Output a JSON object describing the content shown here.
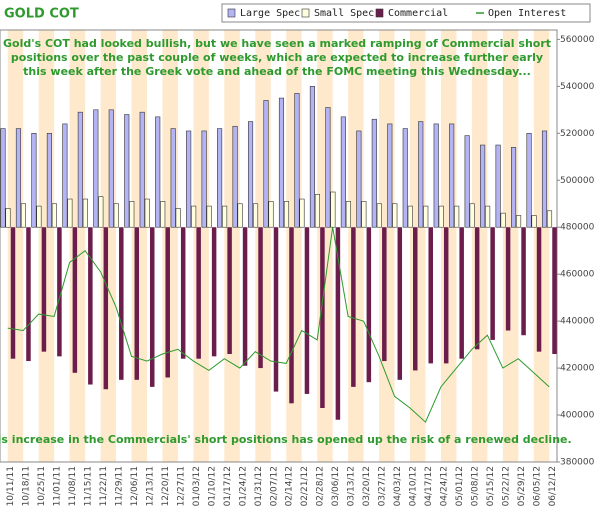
{
  "chart_data": {
    "type": "bar",
    "title": "GOLD COT",
    "categories": [
      "10/11/11",
      "10/18/11",
      "10/25/11",
      "11/01/11",
      "11/08/11",
      "11/15/11",
      "11/22/11",
      "11/29/11",
      "12/06/11",
      "12/13/11",
      "12/20/11",
      "12/27/11",
      "01/03/12",
      "01/10/12",
      "01/17/12",
      "01/24/12",
      "01/31/12",
      "02/07/12",
      "02/14/12",
      "02/21/12",
      "02/28/12",
      "03/06/12",
      "03/13/12",
      "03/20/12",
      "03/27/12",
      "04/03/12",
      "04/10/12",
      "04/17/12",
      "04/24/12",
      "05/01/12",
      "05/08/12",
      "05/15/12",
      "05/22/12",
      "05/29/12",
      "06/05/12",
      "06/12/12"
    ],
    "series": [
      {
        "name": "Large Spec",
        "color": "#b4b4f4",
        "values": [
          522000,
          522000,
          520000,
          520000,
          524000,
          529000,
          530000,
          530000,
          528000,
          529000,
          527000,
          522000,
          521000,
          521000,
          522000,
          523000,
          525000,
          534000,
          535000,
          537000,
          540000,
          531000,
          527000,
          521000,
          526000,
          524000,
          522000,
          525000,
          524000,
          524000,
          519000,
          515000,
          515000,
          514000,
          520000,
          521000
        ]
      },
      {
        "name": "Small Spec",
        "color": "#ffffe0",
        "values": [
          488000,
          490000,
          489000,
          490000,
          492000,
          492000,
          493000,
          490000,
          491000,
          492000,
          491000,
          488000,
          489000,
          489000,
          489000,
          490000,
          490000,
          491000,
          491000,
          492000,
          494000,
          495000,
          491000,
          491000,
          490000,
          490000,
          489000,
          489000,
          489000,
          489000,
          490000,
          489000,
          486000,
          485000,
          485000,
          487000
        ]
      },
      {
        "name": "Commercial",
        "color": "#6b1d4b",
        "values": [
          424000,
          423000,
          427000,
          425000,
          418000,
          413000,
          411000,
          415000,
          415000,
          412000,
          416000,
          424000,
          424000,
          425000,
          426000,
          421000,
          420000,
          410000,
          405000,
          409000,
          403000,
          398000,
          412000,
          414000,
          423000,
          415000,
          419000,
          422000,
          422000,
          424000,
          428000,
          432000,
          436000,
          434000,
          427000,
          426000
        ]
      },
      {
        "name": "Open Interest",
        "color": "#2e9a2e",
        "line": true,
        "values": [
          437000,
          436000,
          443000,
          442000,
          465000,
          470000,
          461000,
          446000,
          425000,
          423000,
          426000,
          428000,
          423000,
          419000,
          424000,
          420000,
          427000,
          423000,
          422000,
          436000,
          432000,
          480000,
          442000,
          440000,
          425000,
          408000,
          403000,
          397000,
          412000,
          420000,
          428000,
          434000,
          420000,
          424000,
          418000,
          412000
        ]
      }
    ],
    "baseline": 480000,
    "ylim": [
      380000,
      564000
    ],
    "yticks": [
      380000,
      400000,
      420000,
      440000,
      460000,
      480000,
      500000,
      520000,
      540000,
      560000
    ],
    "annotations": [
      "Gold's COT had looked bullish, but we have seen a marked ramping of Commercial short",
      "positions over the past couple of weeks, which are expected to increase further early",
      "this week after the Greek vote and ahead of the FOMC meeting this Wednesday...",
      "This increase in the Commercials' short positions has opened up the risk of a renewed decline."
    ]
  }
}
